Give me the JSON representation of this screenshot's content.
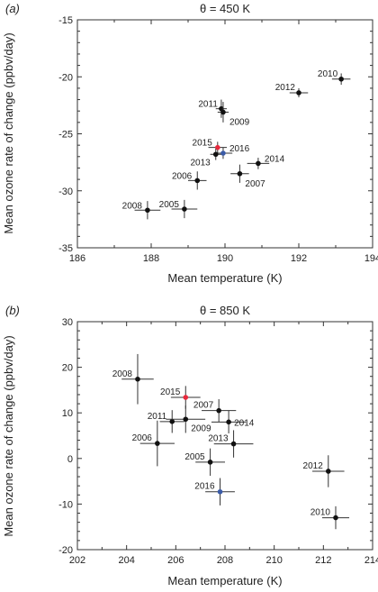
{
  "chart_data": [
    {
      "type": "scatter",
      "panel_label": "(a)",
      "title": "θ = 450 K",
      "xlabel": "Mean temperature (K)",
      "ylabel": "Mean ozone rate of change (ppbv/day)",
      "xlim": [
        186,
        194
      ],
      "ylim": [
        -35,
        -15
      ],
      "xticks": [
        186,
        188,
        190,
        192,
        194
      ],
      "yticks": [
        -35,
        -30,
        -25,
        -20,
        -15
      ],
      "grid": false,
      "points": [
        {
          "label": "2010",
          "x": 193.15,
          "y": -20.2,
          "xerr": 0.25,
          "yerr": 0.5,
          "color": "#111111"
        },
        {
          "label": "2012",
          "x": 192.0,
          "y": -21.4,
          "xerr": 0.25,
          "yerr": 0.4,
          "color": "#111111"
        },
        {
          "label": "2011",
          "x": 189.9,
          "y": -22.8,
          "xerr": 0.15,
          "yerr": 0.8,
          "color": "#111111"
        },
        {
          "label": "2009",
          "x": 189.95,
          "y": -23.1,
          "xerr": 0.15,
          "yerr": 0.9,
          "color": "#111111"
        },
        {
          "label": "2015",
          "x": 189.8,
          "y": -26.2,
          "xerr": 0.25,
          "yerr": 0.5,
          "color": "#e8283c"
        },
        {
          "label": "2016",
          "x": 189.95,
          "y": -26.7,
          "xerr": 0.25,
          "yerr": 0.5,
          "color": "#3a5ba8"
        },
        {
          "label": "2013",
          "x": 189.75,
          "y": -26.8,
          "xerr": 0.15,
          "yerr": 0.5,
          "color": "#111111"
        },
        {
          "label": "2014",
          "x": 190.9,
          "y": -27.6,
          "xerr": 0.3,
          "yerr": 0.5,
          "color": "#111111"
        },
        {
          "label": "2007",
          "x": 190.4,
          "y": -28.5,
          "xerr": 0.25,
          "yerr": 0.8,
          "color": "#111111"
        },
        {
          "label": "2006",
          "x": 189.25,
          "y": -29.1,
          "xerr": 0.25,
          "yerr": 0.8,
          "color": "#111111"
        },
        {
          "label": "2008",
          "x": 187.9,
          "y": -31.7,
          "xerr": 0.35,
          "yerr": 0.8,
          "color": "#111111"
        },
        {
          "label": "2005",
          "x": 188.9,
          "y": -31.6,
          "xerr": 0.35,
          "yerr": 0.8,
          "color": "#111111"
        }
      ]
    },
    {
      "type": "scatter",
      "panel_label": "(b)",
      "title": "θ = 850 K",
      "xlabel": "Mean temperature (K)",
      "ylabel": "Mean ozone rate of change (ppbv/day)",
      "xlim": [
        202,
        214
      ],
      "ylim": [
        -20,
        30
      ],
      "xticks": [
        202,
        204,
        206,
        208,
        210,
        212,
        214
      ],
      "yticks": [
        -20,
        -10,
        0,
        10,
        20,
        30
      ],
      "grid": false,
      "points": [
        {
          "label": "2008",
          "x": 204.45,
          "y": 17.4,
          "xerr": 0.65,
          "yerr": 5.5,
          "color": "#111111"
        },
        {
          "label": "2015",
          "x": 206.4,
          "y": 13.4,
          "xerr": 0.6,
          "yerr": 2.5,
          "color": "#e8283c"
        },
        {
          "label": "2007",
          "x": 207.75,
          "y": 10.5,
          "xerr": 0.7,
          "yerr": 2.5,
          "color": "#111111"
        },
        {
          "label": "2011",
          "x": 205.85,
          "y": 8.1,
          "xerr": 0.5,
          "yerr": 2.5,
          "color": "#111111"
        },
        {
          "label": "2009",
          "x": 206.4,
          "y": 8.6,
          "xerr": 0.8,
          "yerr": 3.0,
          "color": "#111111"
        },
        {
          "label": "2014",
          "x": 208.15,
          "y": 8.0,
          "xerr": 0.7,
          "yerr": 2.5,
          "color": "#111111"
        },
        {
          "label": "2006",
          "x": 205.25,
          "y": 3.3,
          "xerr": 0.7,
          "yerr": 5.0,
          "color": "#111111"
        },
        {
          "label": "2013",
          "x": 208.35,
          "y": 3.2,
          "xerr": 0.8,
          "yerr": 3.0,
          "color": "#111111"
        },
        {
          "label": "2005",
          "x": 207.4,
          "y": -0.8,
          "xerr": 0.6,
          "yerr": 3.0,
          "color": "#111111"
        },
        {
          "label": "2016",
          "x": 207.8,
          "y": -7.3,
          "xerr": 0.6,
          "yerr": 3.0,
          "color": "#3a5ba8"
        },
        {
          "label": "2012",
          "x": 212.2,
          "y": -2.8,
          "xerr": 0.65,
          "yerr": 3.5,
          "color": "#111111"
        },
        {
          "label": "2010",
          "x": 212.5,
          "y": -13.0,
          "xerr": 0.55,
          "yerr": 2.5,
          "color": "#111111"
        }
      ]
    }
  ]
}
